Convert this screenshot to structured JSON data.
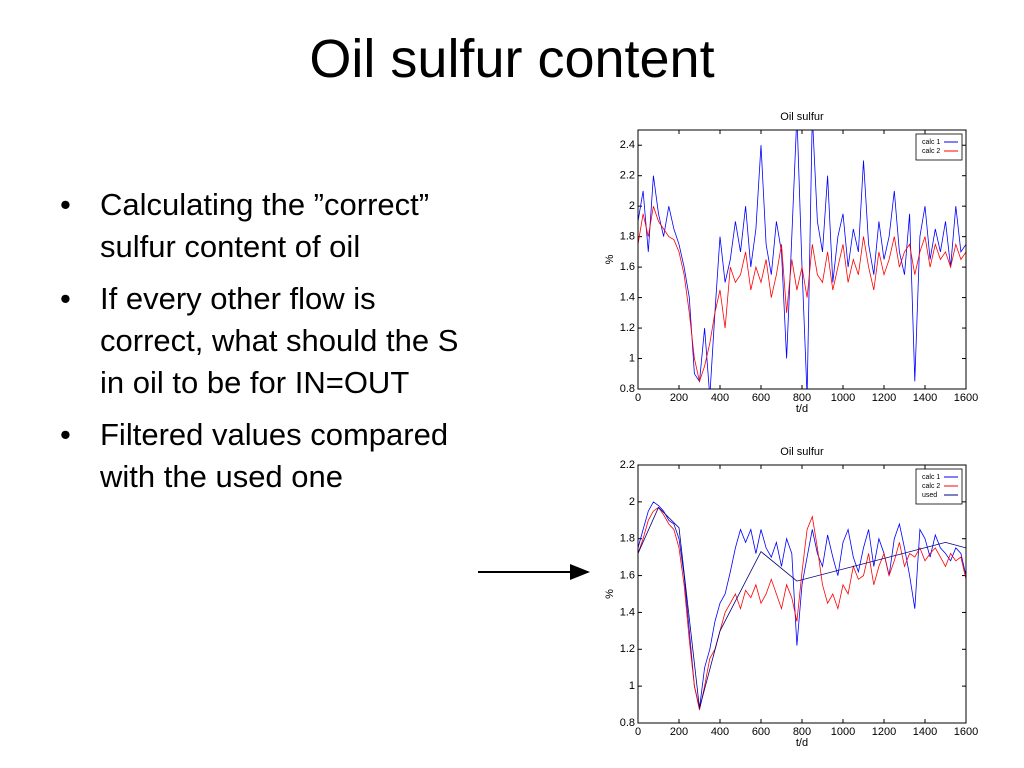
{
  "title": "Oil sulfur content",
  "bullets": [
    "Calculating the ”correct” sulfur content of oil",
    "If every other flow is correct, what should the S in oil to be for IN=OUT",
    "Filtered values compared with the used one"
  ],
  "chart_data": [
    {
      "type": "line",
      "title": "Oil sulfur",
      "xlabel": "t/d",
      "ylabel": "%",
      "legend": "upper right",
      "x": [
        0,
        25,
        50,
        75,
        100,
        125,
        150,
        175,
        200,
        225,
        250,
        275,
        300,
        325,
        350,
        375,
        400,
        425,
        450,
        475,
        500,
        525,
        550,
        575,
        600,
        625,
        650,
        675,
        700,
        725,
        750,
        775,
        800,
        825,
        850,
        875,
        900,
        925,
        950,
        975,
        1000,
        1025,
        1050,
        1075,
        1100,
        1125,
        1150,
        1175,
        1200,
        1225,
        1250,
        1275,
        1300,
        1325,
        1350,
        1375,
        1400,
        1425,
        1450,
        1475,
        1500,
        1525,
        1550,
        1575,
        1600
      ],
      "xlim": [
        0,
        1600
      ],
      "xticks": [
        0,
        200,
        400,
        600,
        800,
        1000,
        1200,
        1400,
        1600
      ],
      "ylim": [
        0.8,
        2.5
      ],
      "yticks": [
        0.8,
        1,
        1.2,
        1.4,
        1.6,
        1.8,
        2,
        2.2,
        2.4
      ],
      "series": [
        {
          "name": "calc 1",
          "color": "#0000ff",
          "values": [
            1.9,
            2.1,
            1.7,
            2.2,
            1.95,
            1.8,
            2.0,
            1.85,
            1.75,
            1.6,
            1.4,
            0.9,
            0.85,
            1.2,
            0.75,
            1.3,
            1.8,
            1.5,
            1.65,
            1.9,
            1.7,
            2.0,
            1.6,
            1.85,
            2.4,
            1.75,
            1.55,
            1.9,
            1.7,
            1.0,
            1.8,
            2.6,
            1.6,
            0.75,
            2.6,
            1.9,
            1.7,
            2.2,
            1.5,
            1.8,
            1.95,
            1.6,
            1.85,
            1.7,
            2.3,
            1.75,
            1.55,
            1.9,
            1.65,
            1.8,
            2.1,
            1.7,
            1.55,
            1.95,
            0.85,
            1.8,
            2.0,
            1.65,
            1.85,
            1.7,
            1.9,
            1.6,
            2.0,
            1.7,
            1.75
          ]
        },
        {
          "name": "calc 2",
          "color": "#ff0000",
          "values": [
            1.75,
            1.95,
            1.8,
            2.0,
            1.9,
            1.85,
            1.8,
            1.78,
            1.7,
            1.55,
            1.3,
            1.0,
            0.85,
            0.95,
            1.1,
            1.3,
            1.45,
            1.2,
            1.6,
            1.5,
            1.55,
            1.7,
            1.45,
            1.6,
            1.5,
            1.65,
            1.4,
            1.55,
            1.75,
            1.3,
            1.65,
            1.45,
            1.6,
            1.4,
            1.75,
            1.55,
            1.5,
            1.7,
            1.45,
            1.6,
            1.75,
            1.5,
            1.65,
            1.55,
            1.8,
            1.6,
            1.45,
            1.7,
            1.55,
            1.65,
            1.8,
            1.6,
            1.7,
            1.75,
            1.55,
            1.7,
            1.8,
            1.6,
            1.75,
            1.65,
            1.7,
            1.6,
            1.75,
            1.65,
            1.7
          ]
        }
      ]
    },
    {
      "type": "line",
      "title": "Oil sulfur",
      "xlabel": "t/d",
      "ylabel": "%",
      "legend": "upper right",
      "x": [
        0,
        25,
        50,
        75,
        100,
        125,
        150,
        175,
        200,
        225,
        250,
        275,
        300,
        325,
        350,
        375,
        400,
        425,
        450,
        475,
        500,
        525,
        550,
        575,
        600,
        625,
        650,
        675,
        700,
        725,
        750,
        775,
        800,
        825,
        850,
        875,
        900,
        925,
        950,
        975,
        1000,
        1025,
        1050,
        1075,
        1100,
        1125,
        1150,
        1175,
        1200,
        1225,
        1250,
        1275,
        1300,
        1325,
        1350,
        1375,
        1400,
        1425,
        1450,
        1475,
        1500,
        1525,
        1550,
        1575,
        1600
      ],
      "xlim": [
        0,
        1600
      ],
      "xticks": [
        0,
        200,
        400,
        600,
        800,
        1000,
        1200,
        1400,
        1600
      ],
      "ylim": [
        0.8,
        2.2
      ],
      "yticks": [
        0.8,
        1,
        1.2,
        1.4,
        1.6,
        1.8,
        2,
        2.2
      ],
      "series": [
        {
          "name": "calc 1",
          "color": "#0000ff",
          "values": [
            1.75,
            1.85,
            1.95,
            2.0,
            1.98,
            1.95,
            1.9,
            1.88,
            1.8,
            1.6,
            1.3,
            1.0,
            0.88,
            1.1,
            1.2,
            1.35,
            1.45,
            1.5,
            1.62,
            1.75,
            1.85,
            1.78,
            1.85,
            1.72,
            1.85,
            1.75,
            1.7,
            1.78,
            1.65,
            1.8,
            1.72,
            1.22,
            1.55,
            1.7,
            1.85,
            1.72,
            1.65,
            1.82,
            1.7,
            1.6,
            1.78,
            1.85,
            1.7,
            1.62,
            1.75,
            1.85,
            1.65,
            1.8,
            1.72,
            1.6,
            1.8,
            1.88,
            1.75,
            1.6,
            1.42,
            1.85,
            1.8,
            1.7,
            1.82,
            1.75,
            1.72,
            1.68,
            1.75,
            1.72,
            1.6
          ]
        },
        {
          "name": "calc 2",
          "color": "#ff0000",
          "values": [
            1.72,
            1.8,
            1.9,
            1.95,
            1.97,
            1.93,
            1.88,
            1.85,
            1.75,
            1.55,
            1.25,
            1.0,
            0.87,
            1.0,
            1.15,
            1.2,
            1.3,
            1.4,
            1.45,
            1.5,
            1.42,
            1.52,
            1.48,
            1.55,
            1.45,
            1.5,
            1.58,
            1.5,
            1.42,
            1.55,
            1.48,
            1.35,
            1.62,
            1.85,
            1.92,
            1.75,
            1.55,
            1.45,
            1.5,
            1.42,
            1.55,
            1.5,
            1.65,
            1.58,
            1.6,
            1.72,
            1.55,
            1.65,
            1.72,
            1.6,
            1.68,
            1.78,
            1.65,
            1.72,
            1.7,
            1.75,
            1.68,
            1.72,
            1.75,
            1.7,
            1.65,
            1.72,
            1.68,
            1.7,
            1.58
          ]
        },
        {
          "name": "used",
          "color": "#000080",
          "x": [
            0,
            100,
            200,
            300,
            400,
            600,
            775,
            1500,
            1600
          ],
          "values": [
            1.72,
            1.97,
            1.86,
            0.88,
            1.3,
            1.73,
            1.57,
            1.78,
            1.75
          ]
        }
      ]
    }
  ]
}
